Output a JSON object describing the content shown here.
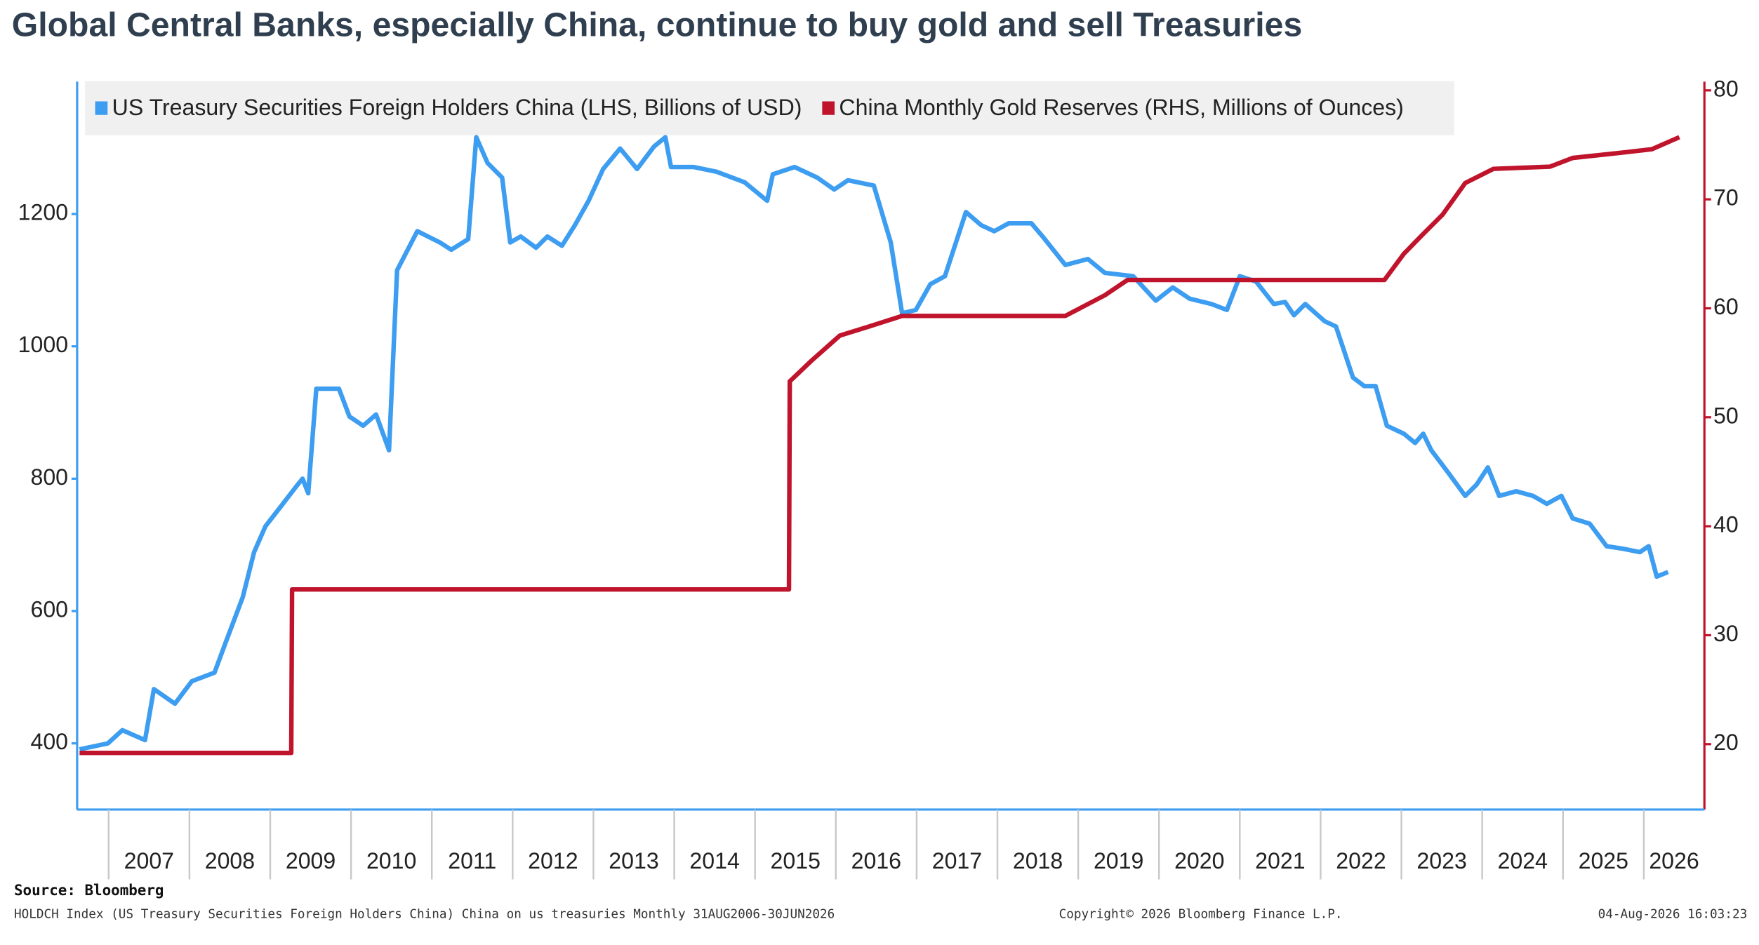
{
  "chart_data": {
    "type": "line",
    "title": "Global Central Banks, especially China, continue to buy gold and sell Treasuries",
    "series": [
      {
        "name": "US Treasury Securities Foreign Holders China (LHS, Billions of USD)",
        "color": "#3d9df0",
        "axis": "y",
        "x": [
          2006.64,
          2006.99,
          2007.17,
          2007.45,
          2007.56,
          2007.82,
          2008.03,
          2008.31,
          2008.45,
          2008.66,
          2008.8,
          2008.94,
          2009.15,
          2009.32,
          2009.4,
          2009.47,
          2009.57,
          2009.85,
          2009.98,
          2010.15,
          2010.31,
          2010.47,
          2010.57,
          2010.82,
          2011.1,
          2011.24,
          2011.45,
          2011.55,
          2011.69,
          2011.87,
          2011.97,
          2012.1,
          2012.29,
          2012.43,
          2012.61,
          2012.77,
          2012.94,
          2013.12,
          2013.33,
          2013.54,
          2013.75,
          2013.89,
          2013.96,
          2014.24,
          2014.52,
          2014.87,
          2015.15,
          2015.22,
          2015.49,
          2015.77,
          2015.98,
          2016.15,
          2016.47,
          2016.68,
          2016.82,
          2016.99,
          2017.17,
          2017.35,
          2017.61,
          2017.8,
          2017.96,
          2018.14,
          2018.42,
          2018.56,
          2018.84,
          2019.12,
          2019.33,
          2019.68,
          2019.96,
          2020.17,
          2020.38,
          2020.65,
          2020.84,
          2021.0,
          2021.2,
          2021.42,
          2021.56,
          2021.67,
          2021.81,
          2022.05,
          2022.19,
          2022.4,
          2022.54,
          2022.68,
          2022.82,
          2023.03,
          2023.17,
          2023.27,
          2023.37,
          2023.58,
          2023.79,
          2023.93,
          2024.07,
          2024.21,
          2024.42,
          2024.63,
          2024.8,
          2024.98,
          2025.12,
          2025.33,
          2025.54,
          2025.75,
          2025.95,
          2026.06,
          2026.16,
          2026.3
        ],
        "values": [
          391,
          400,
          420,
          405,
          482,
          460,
          494,
          507,
          553,
          621,
          689,
          728,
          761,
          788,
          800,
          778,
          936,
          936,
          894,
          880,
          897,
          843,
          1115,
          1174,
          1157,
          1146,
          1162,
          1316,
          1277,
          1255,
          1157,
          1166,
          1149,
          1166,
          1152,
          1183,
          1220,
          1268,
          1299,
          1268,
          1302,
          1316,
          1271,
          1271,
          1264,
          1248,
          1220,
          1260,
          1271,
          1255,
          1237,
          1251,
          1243,
          1157,
          1050,
          1055,
          1094,
          1106,
          1203,
          1183,
          1174,
          1186,
          1186,
          1166,
          1123,
          1132,
          1111,
          1106,
          1069,
          1089,
          1072,
          1064,
          1055,
          1106,
          1098,
          1064,
          1067,
          1047,
          1064,
          1038,
          1030,
          953,
          940,
          940,
          880,
          868,
          854,
          868,
          843,
          809,
          774,
          791,
          817,
          774,
          781,
          774,
          762,
          774,
          740,
          732,
          698,
          694,
          689,
          698,
          652,
          659
        ]
      },
      {
        "name": "China Monthly Gold Reserves (RHS, Millions of Ounces)",
        "color": "#c0142c",
        "axis": "y2",
        "x": [
          2006.64,
          2009.26,
          2009.27,
          2015.42,
          2015.43,
          2015.7,
          2016.05,
          2016.4,
          2016.82,
          2018.84,
          2019.33,
          2019.61,
          2022.79,
          2023.03,
          2023.24,
          2023.51,
          2023.79,
          2024.14,
          2024.84,
          2025.12,
          2025.75,
          2026.1,
          2026.44
        ],
        "values": [
          19.2,
          19.2,
          34.2,
          34.2,
          53.3,
          55.2,
          57.5,
          58.3,
          59.3,
          59.3,
          61.2,
          62.6,
          62.6,
          65.0,
          66.6,
          68.6,
          71.5,
          72.8,
          73.0,
          73.8,
          74.3,
          74.6,
          75.7
        ]
      }
    ],
    "xlim": [
      2006.61,
      2026.75
    ],
    "xticks": [
      2007,
      2008,
      2009,
      2010,
      2011,
      2012,
      2013,
      2014,
      2015,
      2016,
      2017,
      2018,
      2019,
      2020,
      2021,
      2022,
      2023,
      2024,
      2025,
      2026
    ],
    "ylim": [
      300,
      1400
    ],
    "yticks": [
      400,
      600,
      800,
      1000,
      1200
    ],
    "y2lim": [
      14,
      80.8
    ],
    "y2ticks": [
      20,
      30,
      40,
      50,
      60,
      70,
      80
    ],
    "source": "Source: Bloomberg",
    "footnote": "HOLDCH Index (US Treasury Securities Foreign Holders China) China on us treasuries Monthly 31AUG2006-30JUN2026",
    "copyright": "Copyright© 2026 Bloomberg Finance L.P.",
    "timestamp": "04-Aug-2026 16:03:23"
  }
}
